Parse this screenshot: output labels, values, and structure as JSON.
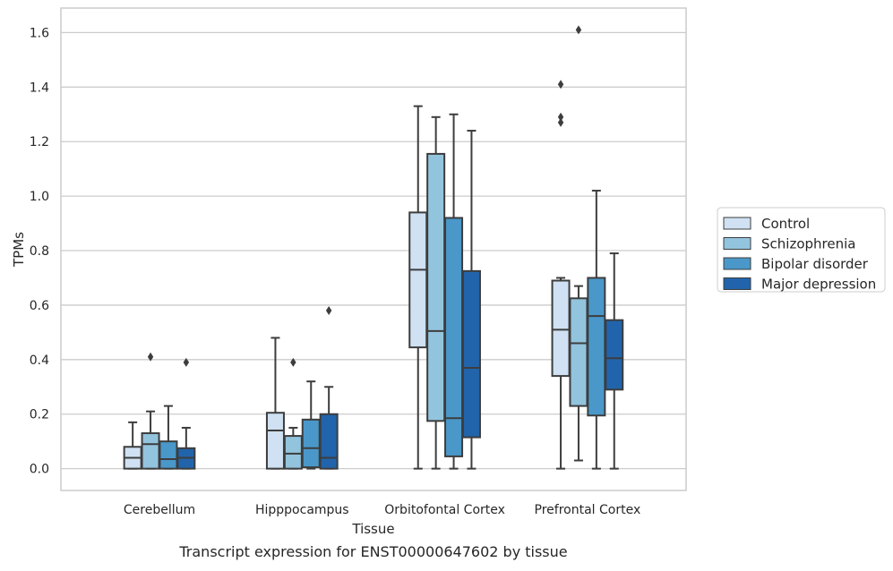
{
  "caption": "Transcript expression for ENST00000647602 by tissue",
  "chart_data": {
    "type": "box",
    "xlabel": "Tissue",
    "ylabel": "TPMs",
    "ylim": [
      -0.08,
      1.69
    ],
    "yticks": [
      "0.0",
      "0.2",
      "0.4",
      "0.6",
      "0.8",
      "1.0",
      "1.2",
      "1.4",
      "1.6"
    ],
    "grid": "horizontal",
    "legend_position": "right",
    "categories": [
      "Cerebellum",
      "Hipppocampus",
      "Orbitofontal Cortex",
      "Prefrontal Cortex"
    ],
    "series": [
      {
        "name": "Control",
        "color": "#cfe1f2",
        "boxes": [
          {
            "whisker_low": 0.0,
            "q1": 0.0,
            "median": 0.04,
            "q3": 0.08,
            "whisker_high": 0.17,
            "outliers": []
          },
          {
            "whisker_low": 0.0,
            "q1": 0.0,
            "median": 0.14,
            "q3": 0.205,
            "whisker_high": 0.48,
            "outliers": []
          },
          {
            "whisker_low": 0.0,
            "q1": 0.445,
            "median": 0.73,
            "q3": 0.94,
            "whisker_high": 1.33,
            "outliers": []
          },
          {
            "whisker_low": 0.0,
            "q1": 0.34,
            "median": 0.51,
            "q3": 0.69,
            "whisker_high": 0.7,
            "outliers": [
              1.27,
              1.29,
              1.41
            ]
          }
        ]
      },
      {
        "name": "Schizophrenia",
        "color": "#93c4de",
        "boxes": [
          {
            "whisker_low": 0.0,
            "q1": 0.0,
            "median": 0.09,
            "q3": 0.13,
            "whisker_high": 0.21,
            "outliers": [
              0.41
            ]
          },
          {
            "whisker_low": 0.0,
            "q1": 0.0,
            "median": 0.055,
            "q3": 0.12,
            "whisker_high": 0.15,
            "outliers": [
              0.39
            ]
          },
          {
            "whisker_low": 0.0,
            "q1": 0.175,
            "median": 0.505,
            "q3": 1.155,
            "whisker_high": 1.29,
            "outliers": []
          },
          {
            "whisker_low": 0.03,
            "q1": 0.23,
            "median": 0.46,
            "q3": 0.625,
            "whisker_high": 0.67,
            "outliers": [
              1.61
            ]
          }
        ]
      },
      {
        "name": "Bipolar disorder",
        "color": "#4a98c9",
        "boxes": [
          {
            "whisker_low": 0.0,
            "q1": 0.0,
            "median": 0.035,
            "q3": 0.1,
            "whisker_high": 0.23,
            "outliers": []
          },
          {
            "whisker_low": 0.0,
            "q1": 0.005,
            "median": 0.075,
            "q3": 0.18,
            "whisker_high": 0.32,
            "outliers": []
          },
          {
            "whisker_low": 0.0,
            "q1": 0.045,
            "median": 0.185,
            "q3": 0.92,
            "whisker_high": 1.3,
            "outliers": []
          },
          {
            "whisker_low": 0.0,
            "q1": 0.195,
            "median": 0.56,
            "q3": 0.7,
            "whisker_high": 1.02,
            "outliers": []
          }
        ]
      },
      {
        "name": "Major depression",
        "color": "#2164ab",
        "boxes": [
          {
            "whisker_low": 0.0,
            "q1": 0.0,
            "median": 0.04,
            "q3": 0.075,
            "whisker_high": 0.15,
            "outliers": [
              0.39
            ]
          },
          {
            "whisker_low": 0.0,
            "q1": 0.0,
            "median": 0.04,
            "q3": 0.2,
            "whisker_high": 0.3,
            "outliers": [
              0.58
            ]
          },
          {
            "whisker_low": 0.0,
            "q1": 0.115,
            "median": 0.37,
            "q3": 0.725,
            "whisker_high": 1.24,
            "outliers": []
          },
          {
            "whisker_low": 0.0,
            "q1": 0.29,
            "median": 0.405,
            "q3": 0.545,
            "whisker_high": 0.79,
            "outliers": []
          }
        ]
      }
    ]
  }
}
